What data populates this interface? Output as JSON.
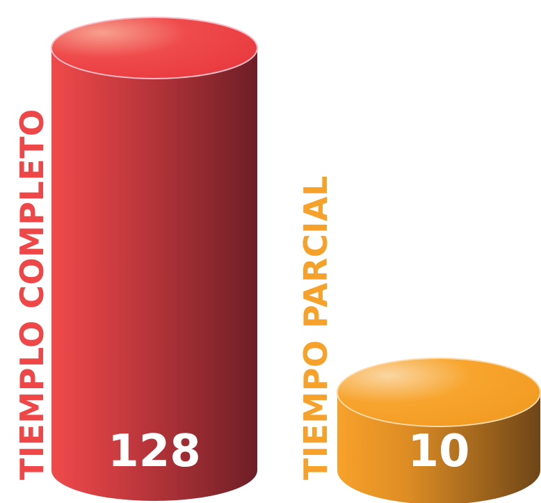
{
  "chart_data": {
    "type": "bar",
    "style": "3d-cylinder",
    "categories": [
      "TIEMPLO COMPLETO",
      "TIEMPO PARCIAL"
    ],
    "values": [
      128,
      10
    ],
    "data_labels": [
      "128",
      "10"
    ],
    "colors": [
      "#ef4748",
      "#f6a12a"
    ],
    "dark_colors": [
      "#6e1e26",
      "#6e4517"
    ],
    "title": "",
    "xlabel": "",
    "ylabel": "",
    "grid": false,
    "legend": "none"
  }
}
